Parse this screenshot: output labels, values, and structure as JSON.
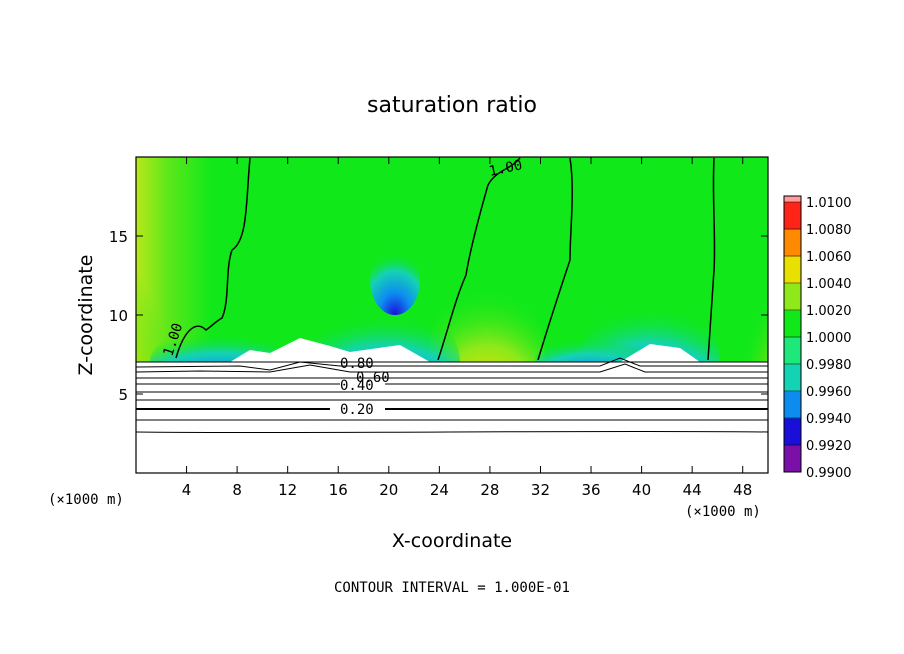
{
  "chart_data": {
    "type": "heatmap",
    "title": "saturation ratio",
    "xlabel": "X-coordinate",
    "ylabel": "Z-coordinate",
    "x_unit_label_left": "(×1000 m)",
    "x_unit_label_right": "(×1000 m)",
    "footer": "CONTOUR INTERVAL = 1.000E-01",
    "xlim": [
      0,
      50
    ],
    "ylim": [
      0,
      20
    ],
    "x_ticks": [
      4,
      8,
      12,
      16,
      20,
      24,
      28,
      32,
      36,
      40,
      44,
      48
    ],
    "y_ticks": [
      5,
      10,
      15
    ],
    "colorbar": {
      "levels": [
        "0.9900",
        "0.9920",
        "0.9940",
        "0.9960",
        "0.9980",
        "1.0000",
        "1.0020",
        "1.0040",
        "1.0060",
        "1.0080",
        "1.0100"
      ],
      "colors": [
        "#7a10a8",
        "#1a0fd8",
        "#0d8cf0",
        "#14d2b4",
        "#1ee87a",
        "#10e81a",
        "#8ee81a",
        "#e8e000",
        "#ff8a00",
        "#ff2418",
        "#ff9c9c"
      ]
    },
    "contour_labels": [
      {
        "text": "1.00",
        "x": 29,
        "z": 19.3
      },
      {
        "text": "1.00",
        "x": 3.3,
        "z": 9.7
      },
      {
        "text": "0.80",
        "x": 17,
        "z": 7.2
      },
      {
        "text": "0.60",
        "x": 20.5,
        "z": 6.3
      },
      {
        "text": "0.40",
        "x": 17.1,
        "z": 5.4
      },
      {
        "text": "0.20",
        "x": 17.1,
        "z": 4.1
      }
    ]
  }
}
